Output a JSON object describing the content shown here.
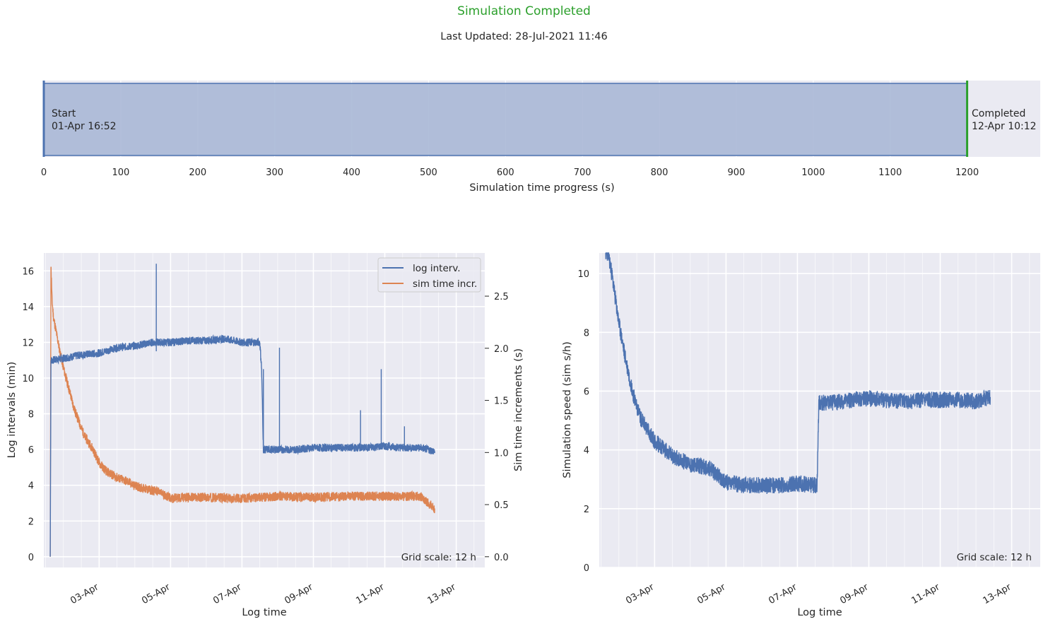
{
  "status": {
    "title": "Simulation Completed",
    "title_color": "#2ca02c",
    "last_updated": "Last Updated: 28-Jul-2021 11:46"
  },
  "progress": {
    "start_label": "Start",
    "start_time": "01-Apr 16:52",
    "end_label": "Completed",
    "end_time": "12-Apr 10:12",
    "value_s": 1200,
    "axis_max": 1295,
    "ticks": [
      0,
      100,
      200,
      300,
      400,
      500,
      600,
      700,
      800,
      900,
      1000,
      1100,
      1200
    ],
    "xlabel": "Simulation time progress (s)",
    "bar_color": "#aab8d6",
    "edge_color": "#4c72b0",
    "end_color": "#2ca02c"
  },
  "chart_data": [
    {
      "type": "line",
      "xlabel": "Log time",
      "ylabel": "Log intervals (min)",
      "y2label": "Sim time increments (s)",
      "x_tick_labels": [
        "03-Apr",
        "05-Apr",
        "07-Apr",
        "09-Apr",
        "11-Apr",
        "13-Apr"
      ],
      "x_tick_days": [
        3,
        5,
        7,
        9,
        11,
        13
      ],
      "xlim_days": [
        1.45,
        13.8
      ],
      "ylim": [
        -0.6,
        17.0
      ],
      "y_ticks": [
        0,
        2,
        4,
        6,
        8,
        10,
        12,
        14,
        16
      ],
      "y2lim": [
        -0.103,
        2.914
      ],
      "y2_ticks": [
        "0.0",
        "0.5",
        "1.0",
        "1.5",
        "2.0",
        "2.5"
      ],
      "legend": "top-right",
      "annotation": "Grid scale: 12 h",
      "series": [
        {
          "name": "log interv.",
          "color": "#4c72b0",
          "axis": "left",
          "x": [
            1.63,
            1.65,
            1.7,
            2.0,
            2.5,
            3.0,
            3.5,
            4.0,
            4.5,
            5.0,
            5.5,
            6.0,
            6.5,
            7.0,
            7.5,
            7.55,
            7.6,
            7.7,
            8.0,
            8.5,
            9.0,
            9.5,
            10.0,
            10.5,
            11.0,
            11.5,
            12.0,
            12.4
          ],
          "y": [
            0,
            11.0,
            11.0,
            11.1,
            11.3,
            11.4,
            11.7,
            11.8,
            12.0,
            12.0,
            12.1,
            12.1,
            12.2,
            12.0,
            12.0,
            10.5,
            6.0,
            6.0,
            6.0,
            6.0,
            6.1,
            6.1,
            6.1,
            6.1,
            6.2,
            6.1,
            6.1,
            5.9
          ],
          "spikes": [
            {
              "x": 4.6,
              "y": 16.4
            },
            {
              "x": 8.05,
              "y": 11.7
            },
            {
              "x": 10.32,
              "y": 8.2
            },
            {
              "x": 10.9,
              "y": 10.5
            },
            {
              "x": 11.55,
              "y": 7.3
            },
            {
              "x": 7.6,
              "y": 10.5
            },
            {
              "x": 1.63,
              "y": 11.5
            }
          ]
        },
        {
          "name": "sim time incr.",
          "color": "#dd8452",
          "axis": "right",
          "x": [
            1.63,
            1.65,
            1.68,
            1.72,
            1.8,
            1.9,
            2.0,
            2.1,
            2.2,
            2.3,
            2.45,
            2.6,
            2.8,
            3.0,
            3.2,
            3.5,
            3.8,
            4.0,
            4.2,
            4.4,
            4.6,
            4.8,
            5.0,
            5.5,
            6.0,
            7.0,
            8.0,
            9.0,
            10.0,
            11.0,
            12.0,
            12.4
          ],
          "y": [
            0,
            2.8,
            2.47,
            2.3,
            2.15,
            1.97,
            1.81,
            1.68,
            1.55,
            1.42,
            1.28,
            1.15,
            1.05,
            0.9,
            0.82,
            0.76,
            0.72,
            0.68,
            0.66,
            0.64,
            0.63,
            0.6,
            0.56,
            0.57,
            0.57,
            0.56,
            0.58,
            0.57,
            0.58,
            0.58,
            0.58,
            0.46
          ]
        }
      ]
    },
    {
      "type": "line",
      "xlabel": "Log time",
      "ylabel": "Simulation speed (sim s/h)",
      "x_tick_labels": [
        "03-Apr",
        "05-Apr",
        "07-Apr",
        "09-Apr",
        "11-Apr",
        "13-Apr"
      ],
      "x_tick_days": [
        3,
        5,
        7,
        9,
        11,
        13
      ],
      "xlim_days": [
        1.45,
        13.8
      ],
      "ylim": [
        0,
        10.7
      ],
      "y_ticks": [
        0,
        2,
        4,
        6,
        8,
        10
      ],
      "annotation": "Grid scale: 12 h",
      "series": [
        {
          "name": "",
          "color": "#4c72b0",
          "x": [
            1.63,
            1.7,
            1.8,
            2.0,
            2.2,
            2.4,
            2.6,
            2.8,
            3.0,
            3.5,
            4.0,
            4.5,
            5.0,
            5.5,
            6.0,
            6.5,
            7.0,
            7.5,
            7.55,
            7.6,
            8.0,
            8.5,
            9.0,
            9.5,
            10.0,
            10.5,
            11.0,
            11.5,
            12.0,
            12.4
          ],
          "y": [
            10.7,
            10.7,
            10.0,
            8.3,
            7.0,
            5.9,
            5.1,
            4.7,
            4.3,
            3.8,
            3.5,
            3.4,
            2.9,
            2.8,
            2.8,
            2.8,
            2.85,
            2.8,
            2.8,
            5.6,
            5.6,
            5.7,
            5.75,
            5.7,
            5.65,
            5.7,
            5.7,
            5.7,
            5.65,
            5.8
          ]
        }
      ]
    }
  ]
}
